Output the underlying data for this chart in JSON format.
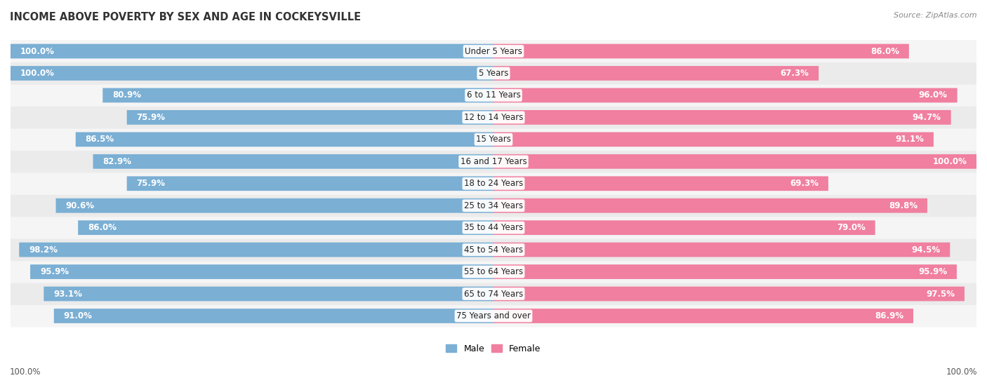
{
  "title": "INCOME ABOVE POVERTY BY SEX AND AGE IN COCKEYSVILLE",
  "source": "Source: ZipAtlas.com",
  "categories": [
    "Under 5 Years",
    "5 Years",
    "6 to 11 Years",
    "12 to 14 Years",
    "15 Years",
    "16 and 17 Years",
    "18 to 24 Years",
    "25 to 34 Years",
    "35 to 44 Years",
    "45 to 54 Years",
    "55 to 64 Years",
    "65 to 74 Years",
    "75 Years and over"
  ],
  "male_values": [
    100.0,
    100.0,
    80.9,
    75.9,
    86.5,
    82.9,
    75.9,
    90.6,
    86.0,
    98.2,
    95.9,
    93.1,
    91.0
  ],
  "female_values": [
    86.0,
    67.3,
    96.0,
    94.7,
    91.1,
    100.0,
    69.3,
    89.8,
    79.0,
    94.5,
    95.9,
    97.5,
    86.9
  ],
  "male_color": "#7bafd4",
  "female_color": "#f07fa0",
  "male_light_color": "#c5d9ed",
  "female_light_color": "#f8c5d0",
  "row_bg_odd": "#f5f5f5",
  "row_bg_even": "#ebebeb",
  "max_value": 100.0,
  "bar_height": 0.62,
  "title_fontsize": 10.5,
  "label_fontsize": 8.5,
  "tick_fontsize": 8.5,
  "legend_fontsize": 9,
  "footer_label": "100.0%"
}
